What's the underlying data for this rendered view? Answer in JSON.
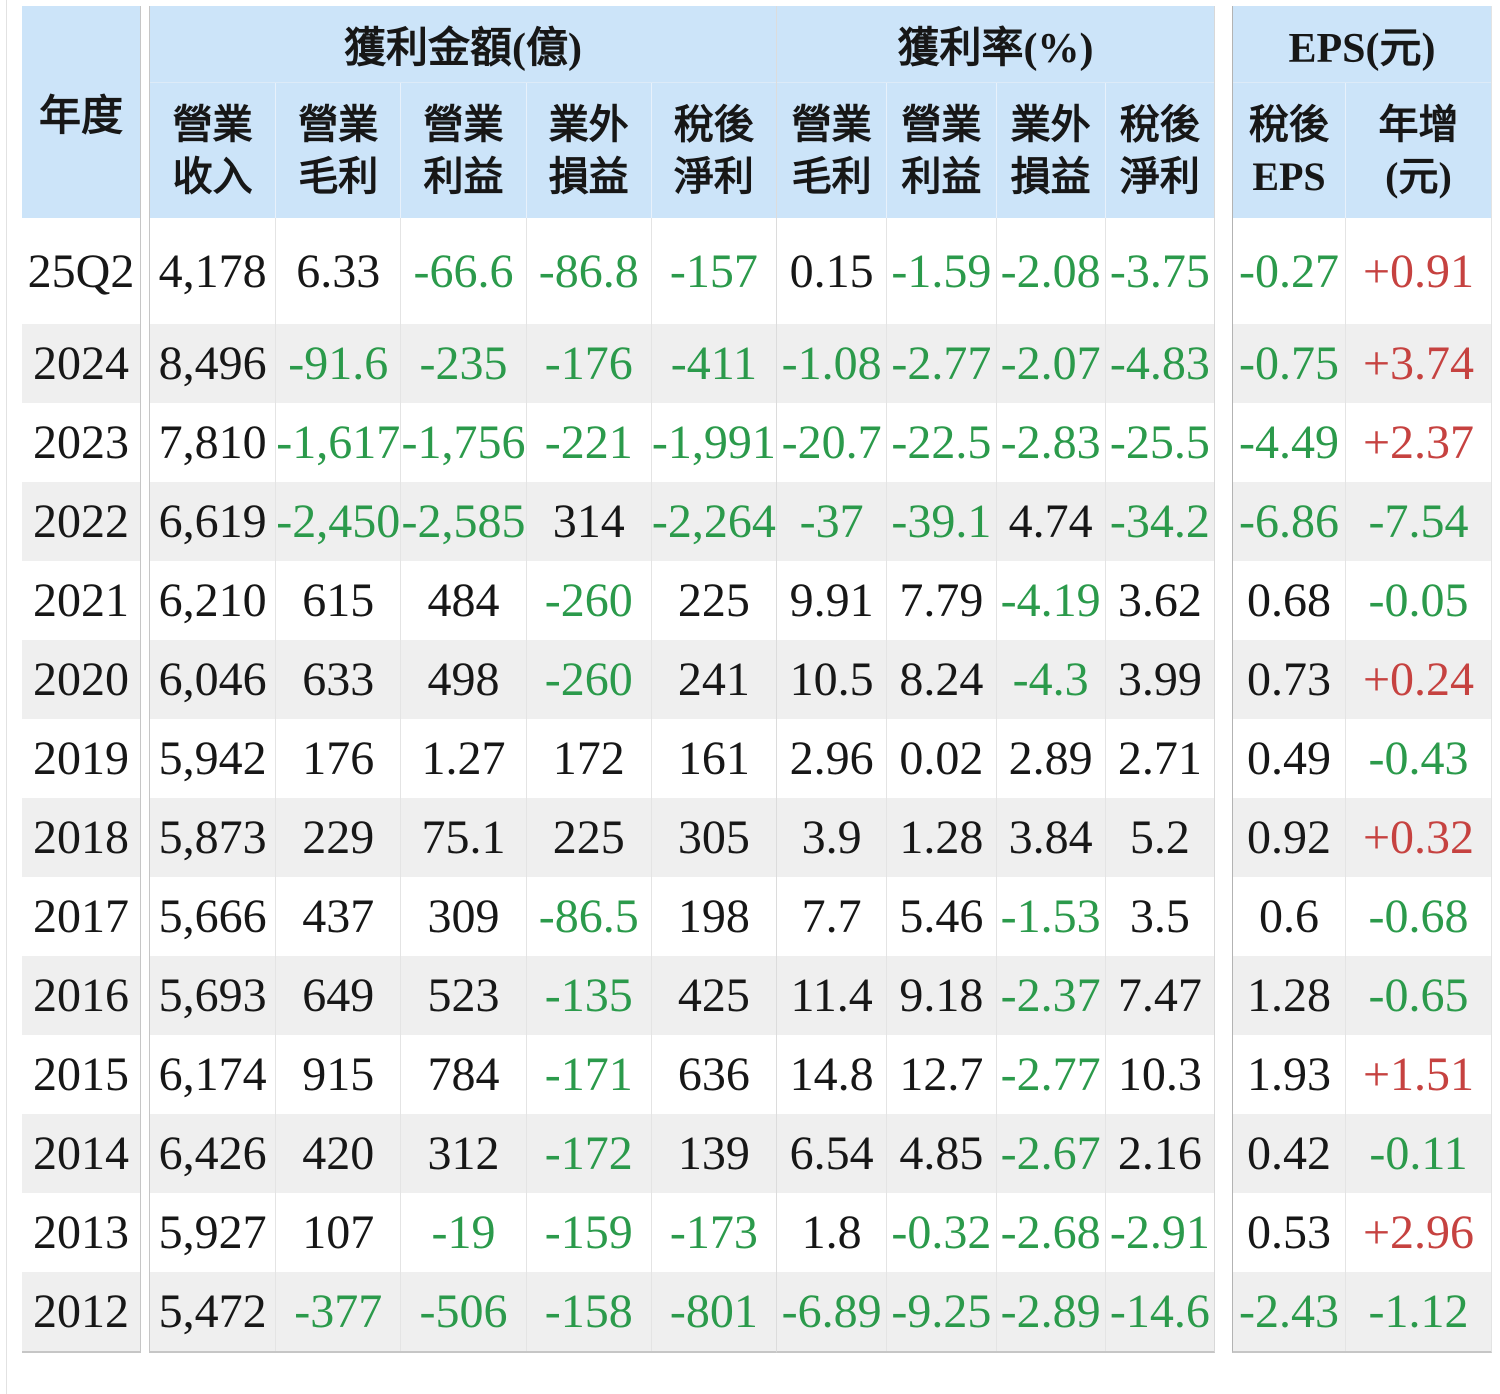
{
  "colors": {
    "header_blue": "#cce4f9",
    "stripe_gray": "#efefef",
    "negative_green": "#2b9a4b",
    "increase_red": "#c64240",
    "text_black": "#171717"
  },
  "table": {
    "year_header": "年度",
    "groups": [
      {
        "id": "amounts",
        "title": "獲利金額(億)",
        "subheaders": [
          "營業\n收入",
          "營業\n毛利",
          "營業\n利益",
          "業外\n損益",
          "稅後\n淨利"
        ]
      },
      {
        "id": "rates",
        "title": "獲利率(%)",
        "subheaders": [
          "營業\n毛利",
          "營業\n利益",
          "業外\n損益",
          "稅後\n淨利"
        ]
      },
      {
        "id": "eps",
        "title": "EPS(元)",
        "subheaders": [
          "稅後\nEPS",
          "年增\n(元)"
        ]
      }
    ],
    "rows": [
      {
        "year": "25Q2",
        "amounts": [
          "4,178",
          "6.33",
          "-66.6",
          "-86.8",
          "-157"
        ],
        "rates": [
          "0.15",
          "-1.59",
          "-2.08",
          "-3.75"
        ],
        "eps": [
          "-0.27",
          "+0.91"
        ]
      },
      {
        "year": "2024",
        "amounts": [
          "8,496",
          "-91.6",
          "-235",
          "-176",
          "-411"
        ],
        "rates": [
          "-1.08",
          "-2.77",
          "-2.07",
          "-4.83"
        ],
        "eps": [
          "-0.75",
          "+3.74"
        ]
      },
      {
        "year": "2023",
        "amounts": [
          "7,810",
          "-1,617",
          "-1,756",
          "-221",
          "-1,991"
        ],
        "rates": [
          "-20.7",
          "-22.5",
          "-2.83",
          "-25.5"
        ],
        "eps": [
          "-4.49",
          "+2.37"
        ]
      },
      {
        "year": "2022",
        "amounts": [
          "6,619",
          "-2,450",
          "-2,585",
          "314",
          "-2,264"
        ],
        "rates": [
          "-37",
          "-39.1",
          "4.74",
          "-34.2"
        ],
        "eps": [
          "-6.86",
          "-7.54"
        ]
      },
      {
        "year": "2021",
        "amounts": [
          "6,210",
          "615",
          "484",
          "-260",
          "225"
        ],
        "rates": [
          "9.91",
          "7.79",
          "-4.19",
          "3.62"
        ],
        "eps": [
          "0.68",
          "-0.05"
        ]
      },
      {
        "year": "2020",
        "amounts": [
          "6,046",
          "633",
          "498",
          "-260",
          "241"
        ],
        "rates": [
          "10.5",
          "8.24",
          "-4.3",
          "3.99"
        ],
        "eps": [
          "0.73",
          "+0.24"
        ]
      },
      {
        "year": "2019",
        "amounts": [
          "5,942",
          "176",
          "1.27",
          "172",
          "161"
        ],
        "rates": [
          "2.96",
          "0.02",
          "2.89",
          "2.71"
        ],
        "eps": [
          "0.49",
          "-0.43"
        ]
      },
      {
        "year": "2018",
        "amounts": [
          "5,873",
          "229",
          "75.1",
          "225",
          "305"
        ],
        "rates": [
          "3.9",
          "1.28",
          "3.84",
          "5.2"
        ],
        "eps": [
          "0.92",
          "+0.32"
        ]
      },
      {
        "year": "2017",
        "amounts": [
          "5,666",
          "437",
          "309",
          "-86.5",
          "198"
        ],
        "rates": [
          "7.7",
          "5.46",
          "-1.53",
          "3.5"
        ],
        "eps": [
          "0.6",
          "-0.68"
        ]
      },
      {
        "year": "2016",
        "amounts": [
          "5,693",
          "649",
          "523",
          "-135",
          "425"
        ],
        "rates": [
          "11.4",
          "9.18",
          "-2.37",
          "7.47"
        ],
        "eps": [
          "1.28",
          "-0.65"
        ]
      },
      {
        "year": "2015",
        "amounts": [
          "6,174",
          "915",
          "784",
          "-171",
          "636"
        ],
        "rates": [
          "14.8",
          "12.7",
          "-2.77",
          "10.3"
        ],
        "eps": [
          "1.93",
          "+1.51"
        ]
      },
      {
        "year": "2014",
        "amounts": [
          "6,426",
          "420",
          "312",
          "-172",
          "139"
        ],
        "rates": [
          "6.54",
          "4.85",
          "-2.67",
          "2.16"
        ],
        "eps": [
          "0.42",
          "-0.11"
        ]
      },
      {
        "year": "2013",
        "amounts": [
          "5,927",
          "107",
          "-19",
          "-159",
          "-173"
        ],
        "rates": [
          "1.8",
          "-0.32",
          "-2.68",
          "-2.91"
        ],
        "eps": [
          "0.53",
          "+2.96"
        ]
      },
      {
        "year": "2012",
        "amounts": [
          "5,472",
          "-377",
          "-506",
          "-158",
          "-801"
        ],
        "rates": [
          "-6.89",
          "-9.25",
          "-2.89",
          "-14.6"
        ],
        "eps": [
          "-2.43",
          "-1.12"
        ]
      }
    ]
  }
}
